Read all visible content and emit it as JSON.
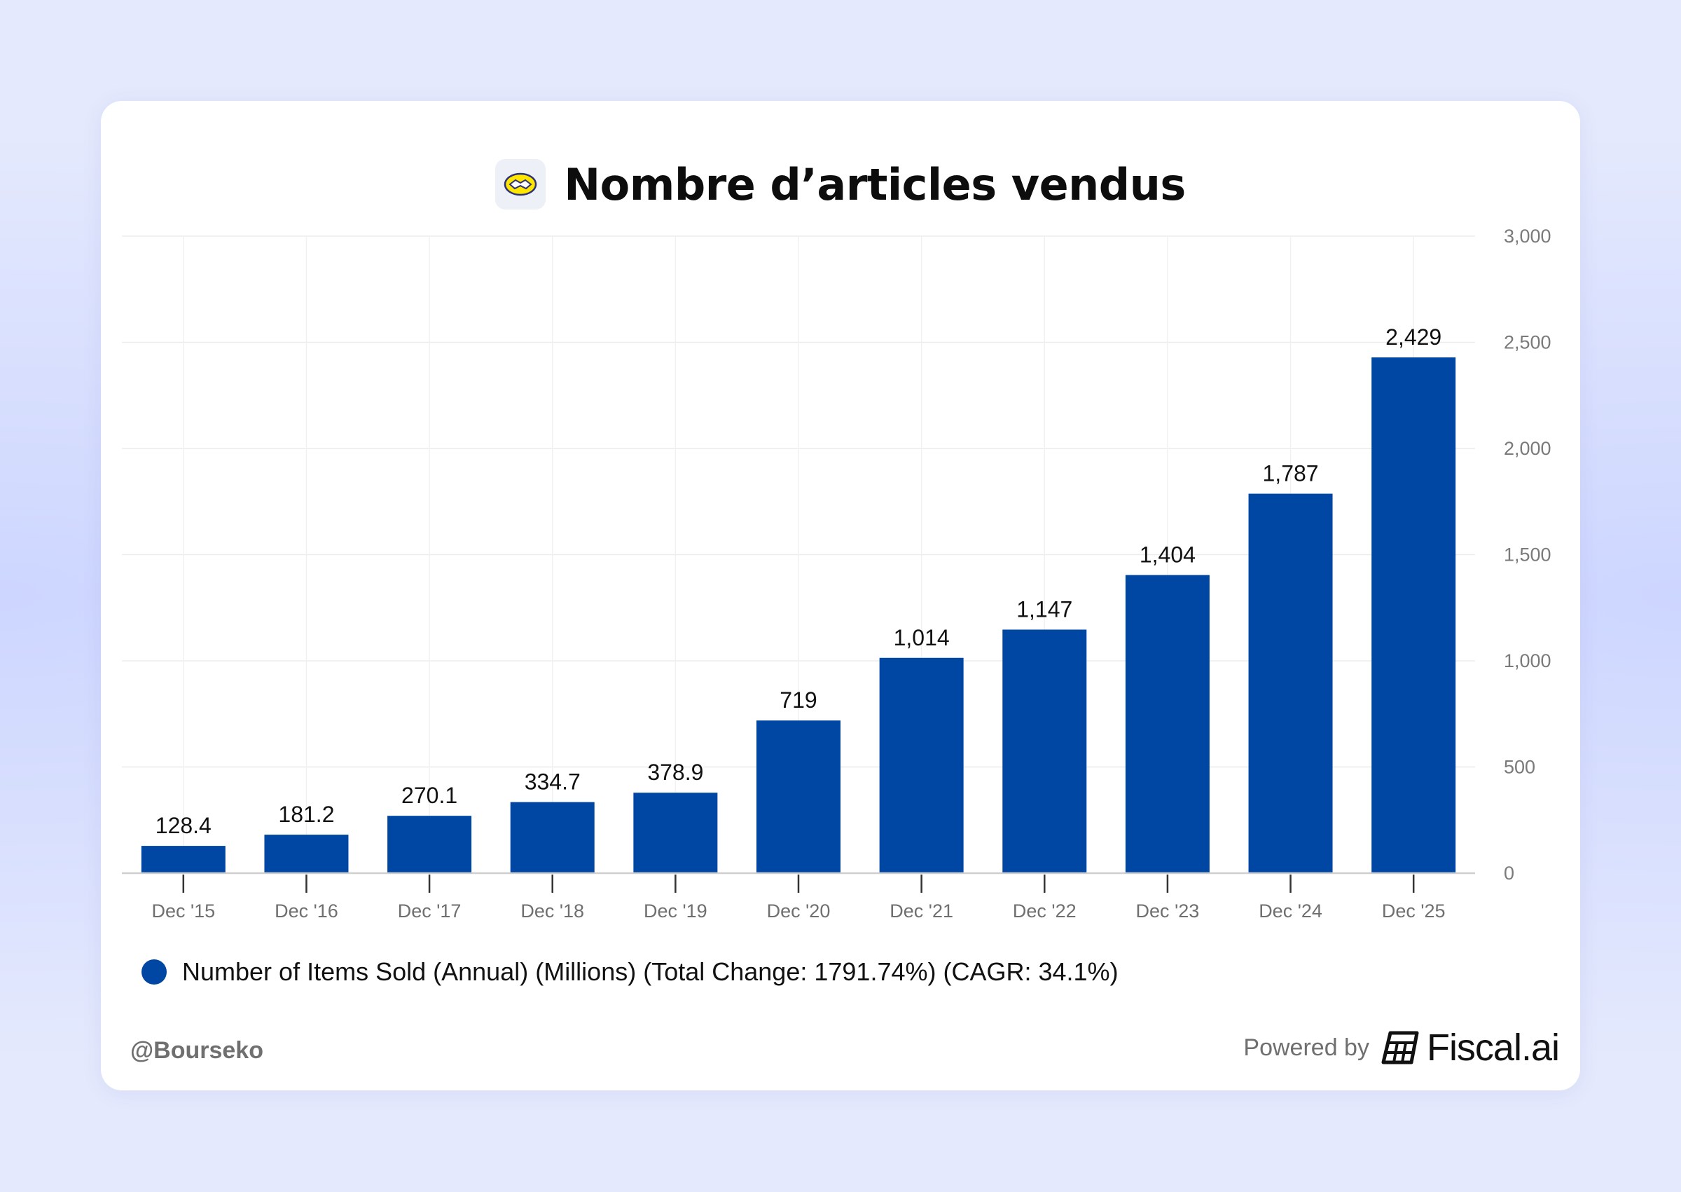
{
  "header": {
    "title": "Nombre d’articles vendus",
    "logo_icon": "handshake-logo-icon"
  },
  "chart_data": {
    "type": "bar",
    "title": "Nombre d’articles vendus",
    "categories": [
      "Dec '15",
      "Dec '16",
      "Dec '17",
      "Dec '18",
      "Dec '19",
      "Dec '20",
      "Dec '21",
      "Dec '22",
      "Dec '23",
      "Dec '24",
      "Dec '25"
    ],
    "series": [
      {
        "name": "Number of Items Sold (Annual) (Millions) (Total Change: 1791.74%) (CAGR: 34.1%)",
        "values": [
          128.4,
          181.2,
          270.1,
          334.7,
          378.9,
          719,
          1014,
          1147,
          1404,
          1787,
          2429
        ],
        "labels": [
          "128.4",
          "181.2",
          "270.1",
          "334.7",
          "378.9",
          "719",
          "1,014",
          "1,147",
          "1,404",
          "1,787",
          "2,429"
        ]
      }
    ],
    "ylim": [
      0,
      3000
    ],
    "yticks": [
      0,
      500,
      1000,
      1500,
      2000,
      2500,
      3000
    ],
    "ytick_labels": [
      "0",
      "500",
      "1,000",
      "1,500",
      "2,000",
      "2,500",
      "3,000"
    ],
    "y_axis_side": "right",
    "grid": true,
    "legend_position": "bottom-left",
    "bar_color": "#0047a4"
  },
  "legend": {
    "label": "Number of Items Sold (Annual) (Millions) (Total Change: 1791.74%) (CAGR: 34.1%)",
    "color": "#0047a4"
  },
  "footer": {
    "handle": "@Bourseko",
    "powered_by": "Powered by",
    "brand": "Fiscal.ai",
    "brand_icon": "fiscal-ai-logo-icon"
  }
}
